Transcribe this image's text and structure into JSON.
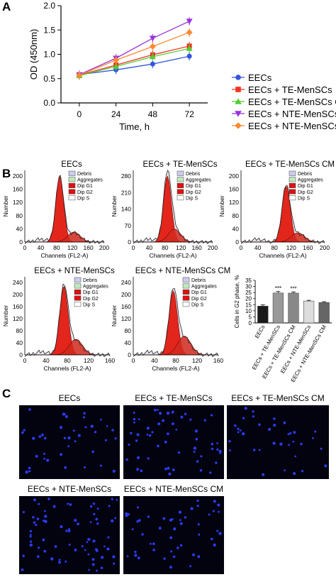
{
  "panels": {
    "a": "A",
    "b": "B",
    "c": "C"
  },
  "chart_data": {
    "type": "line",
    "xlabel": "Time, h",
    "ylabel": "OD (450nm)",
    "x": [
      0,
      24,
      48,
      72
    ],
    "xticks": [
      "0",
      "24",
      "48",
      "72"
    ],
    "yticks": [
      "0.0",
      "0.5",
      "1.0",
      "1.5",
      "2.0"
    ],
    "xlim": [
      -12,
      84
    ],
    "ylim": [
      0,
      2.0
    ],
    "legend_placement": "right",
    "series": [
      {
        "name": "EECs",
        "values": [
          0.58,
          0.68,
          0.8,
          0.96
        ],
        "color": "#3355dd",
        "marker": "circle"
      },
      {
        "name": "EECs + TE-MenSCs",
        "values": [
          0.57,
          0.78,
          0.99,
          1.17
        ],
        "color": "#ee3322",
        "marker": "square"
      },
      {
        "name": "EECs + TE-MenSCs CM",
        "values": [
          0.56,
          0.75,
          0.95,
          1.12
        ],
        "color": "#55cc33",
        "marker": "triangle"
      },
      {
        "name": "EECs + NTE-MenSCs",
        "values": [
          0.58,
          0.92,
          1.33,
          1.68
        ],
        "color": "#9933dd",
        "marker": "triangle-down"
      },
      {
        "name": "EECs + NTE-MenSCs CM",
        "values": [
          0.57,
          0.88,
          1.16,
          1.45
        ],
        "color": "#ff8833",
        "marker": "diamond"
      }
    ]
  },
  "flow": {
    "legend": [
      "Debris",
      "Aggregates",
      "Dip G1",
      "Dip G2",
      "Dip S"
    ],
    "legend_colors": [
      "#ccccee",
      "#bfe8bf",
      "#dd1111",
      "#dd1111",
      "#ffffff"
    ],
    "xlabel": "Channels (FL2-A)",
    "ylabel": "Number",
    "panels": [
      {
        "title": "EECs",
        "yticks": [
          "0",
          "40",
          "80",
          "120",
          "160",
          "200"
        ],
        "xticks": [
          "0",
          "40",
          "80",
          "120",
          "160",
          "200"
        ]
      },
      {
        "title": "EECs + TE-MenSCs",
        "yticks": [
          "0",
          "70",
          "140",
          "210",
          "280"
        ],
        "xticks": [
          "0",
          "40",
          "80",
          "120",
          "160",
          "200"
        ]
      },
      {
        "title": "EECs + TE-MenSCs CM",
        "yticks": [
          "0",
          "40",
          "80",
          "120",
          "160",
          "200"
        ],
        "xticks": [
          "0",
          "40",
          "80",
          "120",
          "160",
          "200"
        ]
      },
      {
        "title": "EECs + NTE-MenSCs",
        "yticks": [
          "0",
          "40",
          "80",
          "120",
          "160",
          "200",
          "240"
        ],
        "xticks": [
          "0",
          "40",
          "80",
          "120",
          "160"
        ]
      },
      {
        "title": "EECs + NTE-MenSCs CM",
        "yticks": [
          "0",
          "40",
          "80",
          "120",
          "160",
          "200",
          "240"
        ],
        "xticks": [
          "0",
          "40",
          "80",
          "120",
          "160"
        ]
      }
    ]
  },
  "g2_chart": {
    "type": "bar",
    "ylabel": "Cells in G2 phase, %",
    "yticks": [
      "0",
      "5",
      "10",
      "15",
      "20",
      "25",
      "30",
      "35"
    ],
    "ylim": [
      0,
      35
    ],
    "categories": [
      "EECs",
      "EECs + TE-MenSCs",
      "EECs + TE-MenSCs CM",
      "EECs + NTE-MenSCs",
      "EECs + NTE-MenSCs CM"
    ],
    "values": [
      13.8,
      24.6,
      24.5,
      18.0,
      16.8
    ],
    "errors": [
      1.0,
      1.2,
      1.0,
      0.6,
      0.7
    ],
    "colors": [
      "#1a1a1a",
      "#999999",
      "#888888",
      "#dddddd",
      "#666666"
    ],
    "significance": [
      "",
      "***",
      "***",
      "",
      ""
    ]
  },
  "microscopy": {
    "panels": [
      {
        "title": "EECs"
      },
      {
        "title": "EECs + TE-MenSCs"
      },
      {
        "title": "EECs + TE-MenSCs CM"
      },
      {
        "title": "EECs + NTE-MenSCs"
      },
      {
        "title": "EECs + NTE-MenSCs CM"
      }
    ]
  }
}
